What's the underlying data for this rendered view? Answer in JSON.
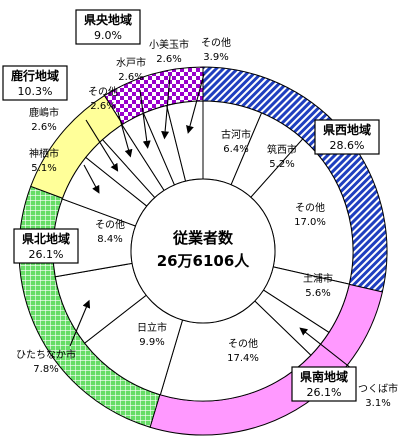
{
  "chart_data": {
    "type": "pie",
    "title": "",
    "center": {
      "line1": "従業者数",
      "line2": "26万6106人"
    },
    "outer_ring": [
      {
        "name": "県西地域",
        "value": 28.6,
        "label": "28.6%",
        "color": "#1f3fbf",
        "pattern": "diag-blue"
      },
      {
        "name": "県南地域",
        "value": 26.1,
        "label": "26.1%",
        "color": "#ff99ff",
        "pattern": "solid-pink"
      },
      {
        "name": "県北地域",
        "value": 26.1,
        "label": "26.1%",
        "color": "#66dd66",
        "pattern": "grid-green"
      },
      {
        "name": "鹿行地域",
        "value": 10.3,
        "label": "10.3%",
        "color": "#ffff99",
        "pattern": "solid-yellow"
      },
      {
        "name": "県央地域",
        "value": 9.0,
        "label": "9.0%",
        "color": "#9900cc",
        "pattern": "checker-purple"
      }
    ],
    "inner_ring": [
      {
        "name": "古河市",
        "value": 6.4,
        "label": "6.4%"
      },
      {
        "name": "筑西市",
        "value": 5.2,
        "label": "5.2%"
      },
      {
        "name": "その他",
        "value": 17.0,
        "label": "17.0%"
      },
      {
        "name": "土浦市",
        "value": 5.6,
        "label": "5.6%"
      },
      {
        "name": "つくば市",
        "value": 3.1,
        "label": "3.1%"
      },
      {
        "name": "その他",
        "value": 17.4,
        "label": "17.4%"
      },
      {
        "name": "日立市",
        "value": 9.9,
        "label": "9.9%"
      },
      {
        "name": "ひたちなか市",
        "value": 7.8,
        "label": "7.8%"
      },
      {
        "name": "その他",
        "value": 8.4,
        "label": "8.4%"
      },
      {
        "name": "神栖市",
        "value": 5.1,
        "label": "5.1%"
      },
      {
        "name": "鹿嶋市",
        "value": 2.6,
        "label": "2.6%"
      },
      {
        "name": "その他",
        "value": 2.6,
        "label": "2.6%"
      },
      {
        "name": "水戸市",
        "value": 2.6,
        "label": "2.6%"
      },
      {
        "name": "小美玉市",
        "value": 2.6,
        "label": "2.6%"
      },
      {
        "name": "その他",
        "value": 3.9,
        "label": "3.9%"
      }
    ]
  }
}
